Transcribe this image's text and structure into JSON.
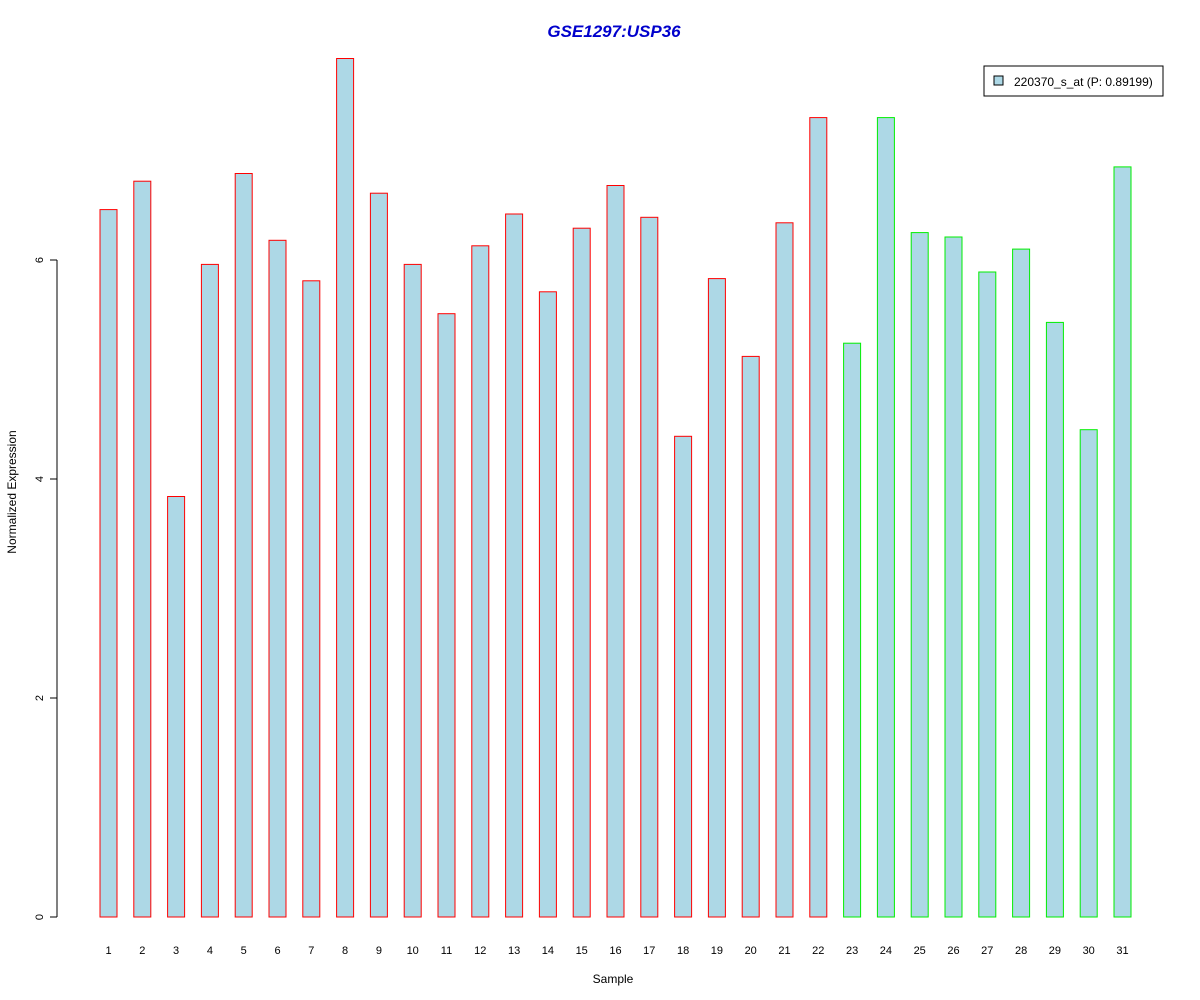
{
  "chart_data": {
    "type": "bar",
    "title": "GSE1297:USP36",
    "xlabel": "Sample",
    "ylabel": "Normalized Expression",
    "categories": [
      "1",
      "2",
      "3",
      "4",
      "5",
      "6",
      "7",
      "8",
      "9",
      "10",
      "11",
      "12",
      "13",
      "14",
      "15",
      "16",
      "17",
      "18",
      "19",
      "20",
      "21",
      "22",
      "23",
      "24",
      "25",
      "26",
      "27",
      "28",
      "29",
      "30",
      "31"
    ],
    "series": [
      {
        "name": "220370_s_at (P: 0.89199)",
        "values": [
          6.46,
          6.72,
          3.84,
          5.96,
          6.79,
          6.18,
          5.81,
          7.84,
          6.61,
          5.96,
          5.51,
          6.13,
          6.42,
          5.71,
          6.29,
          6.68,
          6.39,
          4.39,
          5.83,
          5.12,
          6.34,
          7.3,
          5.24,
          7.3,
          6.25,
          6.21,
          5.89,
          6.1,
          5.43,
          4.45,
          6.85
        ]
      }
    ],
    "bar_edge_colors": [
      "#ff0000",
      "#ff0000",
      "#ff0000",
      "#ff0000",
      "#ff0000",
      "#ff0000",
      "#ff0000",
      "#ff0000",
      "#ff0000",
      "#ff0000",
      "#ff0000",
      "#ff0000",
      "#ff0000",
      "#ff0000",
      "#ff0000",
      "#ff0000",
      "#ff0000",
      "#ff0000",
      "#ff0000",
      "#ff0000",
      "#ff0000",
      "#ff0000",
      "#00ee00",
      "#00ee00",
      "#00ee00",
      "#00ee00",
      "#00ee00",
      "#00ee00",
      "#00ee00",
      "#00ee00",
      "#00ee00"
    ],
    "bar_fill_color": "#add8e6",
    "title_color": "#0000cc",
    "yticks": [
      "0",
      "2",
      "4",
      "6"
    ],
    "ylim": [
      0,
      7.9
    ],
    "grid": false,
    "legend_position": "top-right"
  }
}
